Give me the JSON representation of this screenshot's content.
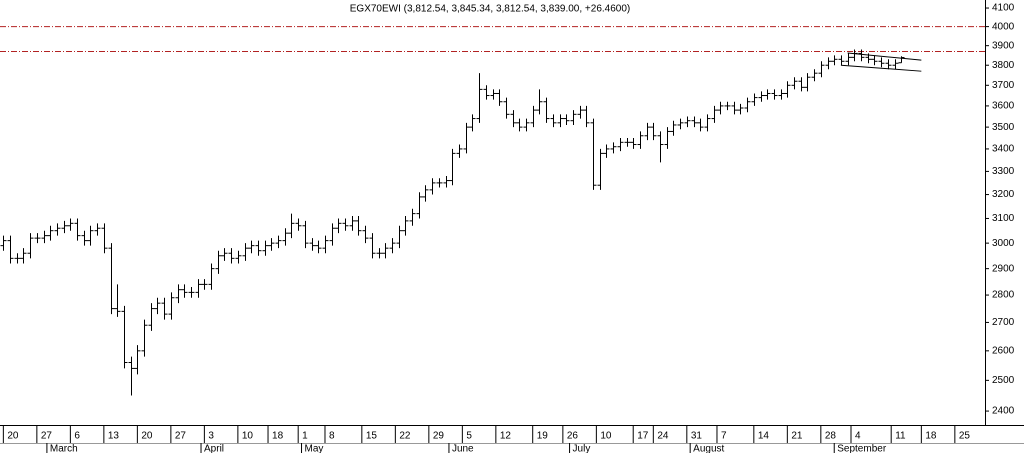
{
  "chart_data": {
    "type": "ohlc",
    "title": "EGX70EWI (3,812.54, 3,845.34, 3,812.54, 3,839.00, +26.4600)",
    "color": "#000000",
    "log_scale": true,
    "ylim": [
      2356,
      4144
    ],
    "yticks": [
      2400,
      2500,
      2600,
      2700,
      2800,
      2900,
      3000,
      3100,
      3200,
      3300,
      3400,
      3500,
      3600,
      3700,
      3800,
      3900,
      4000,
      4100
    ],
    "xlim": [
      -0.5,
      146.5
    ],
    "xticks": [
      {
        "value": 0,
        "label": "20"
      },
      {
        "value": 5,
        "label": "27"
      },
      {
        "value": 10,
        "label": "6"
      },
      {
        "value": 15,
        "label": "13"
      },
      {
        "value": 20,
        "label": "20"
      },
      {
        "value": 25,
        "label": "27"
      },
      {
        "value": 30,
        "label": "3"
      },
      {
        "value": 35,
        "label": "10"
      },
      {
        "value": 39.5,
        "label": "18"
      },
      {
        "value": 44,
        "label": "1"
      },
      {
        "value": 48,
        "label": "8"
      },
      {
        "value": 53.5,
        "label": "15"
      },
      {
        "value": 58.5,
        "label": "22"
      },
      {
        "value": 63.5,
        "label": "29"
      },
      {
        "value": 68.5,
        "label": "5"
      },
      {
        "value": 73.5,
        "label": "12"
      },
      {
        "value": 79,
        "label": "19"
      },
      {
        "value": 83.5,
        "label": "26"
      },
      {
        "value": 88.5,
        "label": "10"
      },
      {
        "value": 94,
        "label": "17"
      },
      {
        "value": 97,
        "label": "24"
      },
      {
        "value": 102,
        "label": "31"
      },
      {
        "value": 106.5,
        "label": "7"
      },
      {
        "value": 112,
        "label": "14"
      },
      {
        "value": 117,
        "label": "21"
      },
      {
        "value": 122,
        "label": "28"
      },
      {
        "value": 126.5,
        "label": "4"
      },
      {
        "value": 132.5,
        "label": "11"
      },
      {
        "value": 137,
        "label": "18"
      },
      {
        "value": 142,
        "label": "25"
      }
    ],
    "months": [
      {
        "value": 6.5,
        "label": "March"
      },
      {
        "value": 29.5,
        "label": "April"
      },
      {
        "value": 44.5,
        "label": "May"
      },
      {
        "value": 66.5,
        "label": "June"
      },
      {
        "value": 84.5,
        "label": "July"
      },
      {
        "value": 102.5,
        "label": "August"
      },
      {
        "value": 124,
        "label": "September"
      }
    ],
    "open": [
      2990,
      3010,
      2940,
      2940,
      2960,
      3020,
      3020,
      3030,
      3050,
      3060,
      3070,
      3080,
      3030,
      3010,
      3050,
      3060,
      2980,
      2750,
      2740,
      2560,
      2540,
      2600,
      2690,
      2750,
      2770,
      2730,
      2790,
      2820,
      2810,
      2810,
      2840,
      2840,
      2900,
      2950,
      2960,
      2940,
      2950,
      2980,
      2990,
      2970,
      2990,
      3000,
      3010,
      3040,
      3080,
      3070,
      3000,
      2990,
      2980,
      3010,
      3060,
      3080,
      3070,
      3090,
      3050,
      3020,
      2960,
      2960,
      2980,
      3000,
      3050,
      3090,
      3120,
      3190,
      3220,
      3250,
      3250,
      3260,
      3380,
      3400,
      3500,
      3540,
      3680,
      3650,
      3660,
      3620,
      3560,
      3520,
      3500,
      3520,
      3580,
      3620,
      3540,
      3520,
      3540,
      3530,
      3560,
      3580,
      3520,
      3240,
      3380,
      3400,
      3410,
      3430,
      3430,
      3420,
      3460,
      3500,
      3460,
      3420,
      3480,
      3510,
      3520,
      3530,
      3520,
      3500,
      3540,
      3580,
      3600,
      3600,
      3580,
      3590,
      3620,
      3640,
      3650,
      3660,
      3650,
      3660,
      3700,
      3720,
      3690,
      3740,
      3760,
      3800,
      3820,
      3830,
      3820,
      3840,
      3860,
      3840,
      3830,
      3820,
      3810,
      3800,
      3812.54
    ],
    "high": [
      3030,
      3030,
      2960,
      2980,
      3040,
      3040,
      3050,
      3070,
      3080,
      3090,
      3100,
      3100,
      3050,
      3070,
      3080,
      3080,
      3000,
      2840,
      2760,
      2580,
      2620,
      2710,
      2770,
      2790,
      2790,
      2810,
      2840,
      2840,
      2830,
      2860,
      2860,
      2920,
      2970,
      2980,
      2980,
      2970,
      3000,
      3010,
      3010,
      3010,
      3020,
      3030,
      3060,
      3120,
      3100,
      3090,
      3020,
      3010,
      3030,
      3080,
      3100,
      3100,
      3110,
      3110,
      3070,
      3040,
      2980,
      3000,
      3020,
      3070,
      3110,
      3140,
      3210,
      3240,
      3270,
      3270,
      3280,
      3400,
      3420,
      3520,
      3560,
      3760,
      3700,
      3680,
      3680,
      3640,
      3580,
      3540,
      3540,
      3600,
      3680,
      3640,
      3560,
      3560,
      3560,
      3580,
      3600,
      3600,
      3540,
      3400,
      3420,
      3430,
      3450,
      3450,
      3450,
      3480,
      3520,
      3520,
      3480,
      3500,
      3530,
      3540,
      3550,
      3550,
      3540,
      3560,
      3600,
      3620,
      3620,
      3620,
      3610,
      3640,
      3660,
      3670,
      3680,
      3680,
      3680,
      3720,
      3740,
      3740,
      3760,
      3780,
      3820,
      3840,
      3850,
      3850,
      3860,
      3880,
      3880,
      3860,
      3850,
      3840,
      3830,
      3830,
      3845.34
    ],
    "low": [
      2970,
      2920,
      2920,
      2920,
      2940,
      3000,
      3000,
      3010,
      3030,
      3040,
      3050,
      3010,
      2990,
      2990,
      3030,
      2960,
      2730,
      2720,
      2540,
      2450,
      2520,
      2580,
      2670,
      2730,
      2710,
      2710,
      2770,
      2790,
      2790,
      2790,
      2820,
      2820,
      2880,
      2930,
      2920,
      2920,
      2930,
      2960,
      2950,
      2950,
      2970,
      2980,
      2990,
      3020,
      3050,
      2980,
      2970,
      2960,
      2960,
      2990,
      3040,
      3050,
      3050,
      3030,
      3000,
      2940,
      2940,
      2940,
      2960,
      2980,
      3030,
      3070,
      3100,
      3170,
      3200,
      3230,
      3230,
      3240,
      3360,
      3380,
      3480,
      3520,
      3630,
      3630,
      3600,
      3540,
      3500,
      3480,
      3480,
      3500,
      3560,
      3520,
      3500,
      3500,
      3510,
      3510,
      3540,
      3500,
      3220,
      3220,
      3360,
      3380,
      3390,
      3410,
      3400,
      3400,
      3440,
      3440,
      3340,
      3400,
      3460,
      3490,
      3500,
      3500,
      3480,
      3480,
      3520,
      3560,
      3580,
      3560,
      3560,
      3570,
      3600,
      3620,
      3630,
      3630,
      3630,
      3640,
      3680,
      3670,
      3670,
      3720,
      3740,
      3780,
      3800,
      3800,
      3800,
      3820,
      3820,
      3810,
      3800,
      3790,
      3780,
      3780,
      3812.54
    ],
    "close": [
      3010,
      2940,
      2940,
      2960,
      3020,
      3020,
      3030,
      3050,
      3060,
      3070,
      3080,
      3030,
      3010,
      3050,
      3060,
      2980,
      2750,
      2740,
      2560,
      2540,
      2600,
      2690,
      2750,
      2770,
      2730,
      2790,
      2820,
      2810,
      2810,
      2840,
      2840,
      2900,
      2950,
      2960,
      2940,
      2950,
      2980,
      2990,
      2970,
      2990,
      3000,
      3010,
      3040,
      3080,
      3070,
      3000,
      2990,
      2980,
      3010,
      3060,
      3080,
      3070,
      3090,
      3050,
      3020,
      2960,
      2960,
      2980,
      3000,
      3050,
      3090,
      3120,
      3190,
      3220,
      3250,
      3250,
      3260,
      3380,
      3400,
      3500,
      3540,
      3680,
      3650,
      3660,
      3620,
      3560,
      3520,
      3500,
      3520,
      3580,
      3620,
      3540,
      3520,
      3540,
      3530,
      3560,
      3580,
      3520,
      3240,
      3380,
      3400,
      3410,
      3430,
      3430,
      3420,
      3460,
      3500,
      3460,
      3420,
      3480,
      3510,
      3520,
      3530,
      3520,
      3500,
      3540,
      3580,
      3600,
      3600,
      3580,
      3590,
      3620,
      3640,
      3650,
      3660,
      3650,
      3660,
      3700,
      3720,
      3690,
      3740,
      3760,
      3800,
      3820,
      3830,
      3820,
      3840,
      3860,
      3840,
      3830,
      3820,
      3810,
      3800,
      3810,
      3839
    ],
    "hlines": {
      "values": [
        4000,
        3870
      ],
      "color": "#b22222"
    },
    "trendlines": [
      {
        "x": [
          126,
          137
        ],
        "y": [
          3862,
          3826
        ]
      },
      {
        "x": [
          125,
          137
        ],
        "y": [
          3800,
          3770
        ]
      }
    ]
  }
}
